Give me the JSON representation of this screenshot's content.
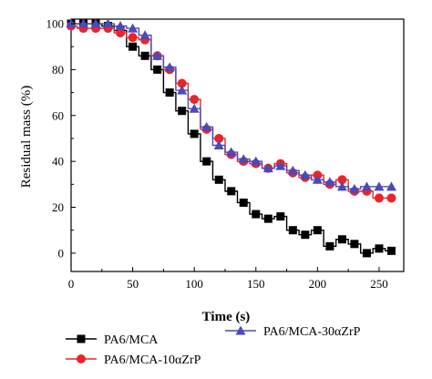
{
  "chart_data": {
    "type": "line",
    "xlabel": "Time (s)",
    "ylabel": "Residual mass (%)",
    "xlim": [
      0,
      270
    ],
    "ylim": [
      -8,
      102
    ],
    "xticks": [
      0,
      50,
      100,
      150,
      200,
      250
    ],
    "yticks": [
      0,
      20,
      40,
      60,
      80,
      100
    ],
    "grid": false,
    "legend_position": "bottom",
    "series": [
      {
        "name": "PA6/MCA",
        "color": "#000000",
        "marker": "square",
        "x": [
          0,
          10,
          20,
          30,
          40,
          50,
          60,
          70,
          80,
          90,
          100,
          110,
          120,
          130,
          140,
          150,
          160,
          170,
          180,
          190,
          200,
          210,
          220,
          230,
          240,
          250,
          260
        ],
        "values": [
          100,
          100,
          100,
          99,
          97,
          90,
          86,
          80,
          70,
          62,
          52,
          40,
          32,
          27,
          22,
          17,
          15,
          16,
          10,
          8,
          10,
          3,
          6,
          4,
          0,
          2,
          1
        ]
      },
      {
        "name": "PA6/MCA-10αZrP",
        "color": "#e8262a",
        "marker": "circle",
        "x": [
          0,
          10,
          20,
          30,
          40,
          50,
          60,
          70,
          80,
          90,
          100,
          110,
          120,
          130,
          140,
          150,
          160,
          170,
          180,
          190,
          200,
          210,
          220,
          230,
          240,
          250,
          260
        ],
        "values": [
          99,
          98,
          98,
          98,
          96,
          94,
          93,
          86,
          80,
          74,
          67,
          54,
          50,
          43,
          40,
          39,
          37,
          39,
          35,
          33,
          34,
          30,
          32,
          27,
          27,
          24,
          24
        ]
      },
      {
        "name": "PA6/MCA-30αZrP",
        "color": "#4a4ab8",
        "marker": "triangle",
        "x": [
          0,
          10,
          20,
          30,
          40,
          50,
          60,
          70,
          80,
          90,
          100,
          110,
          120,
          130,
          140,
          150,
          160,
          170,
          180,
          190,
          200,
          210,
          220,
          230,
          240,
          250,
          260
        ],
        "values": [
          100,
          100,
          100,
          100,
          99,
          98,
          95,
          86,
          81,
          71,
          63,
          55,
          47,
          44,
          41,
          40,
          37,
          38,
          36,
          34,
          32,
          31,
          29,
          28,
          29,
          29,
          29
        ]
      }
    ]
  }
}
